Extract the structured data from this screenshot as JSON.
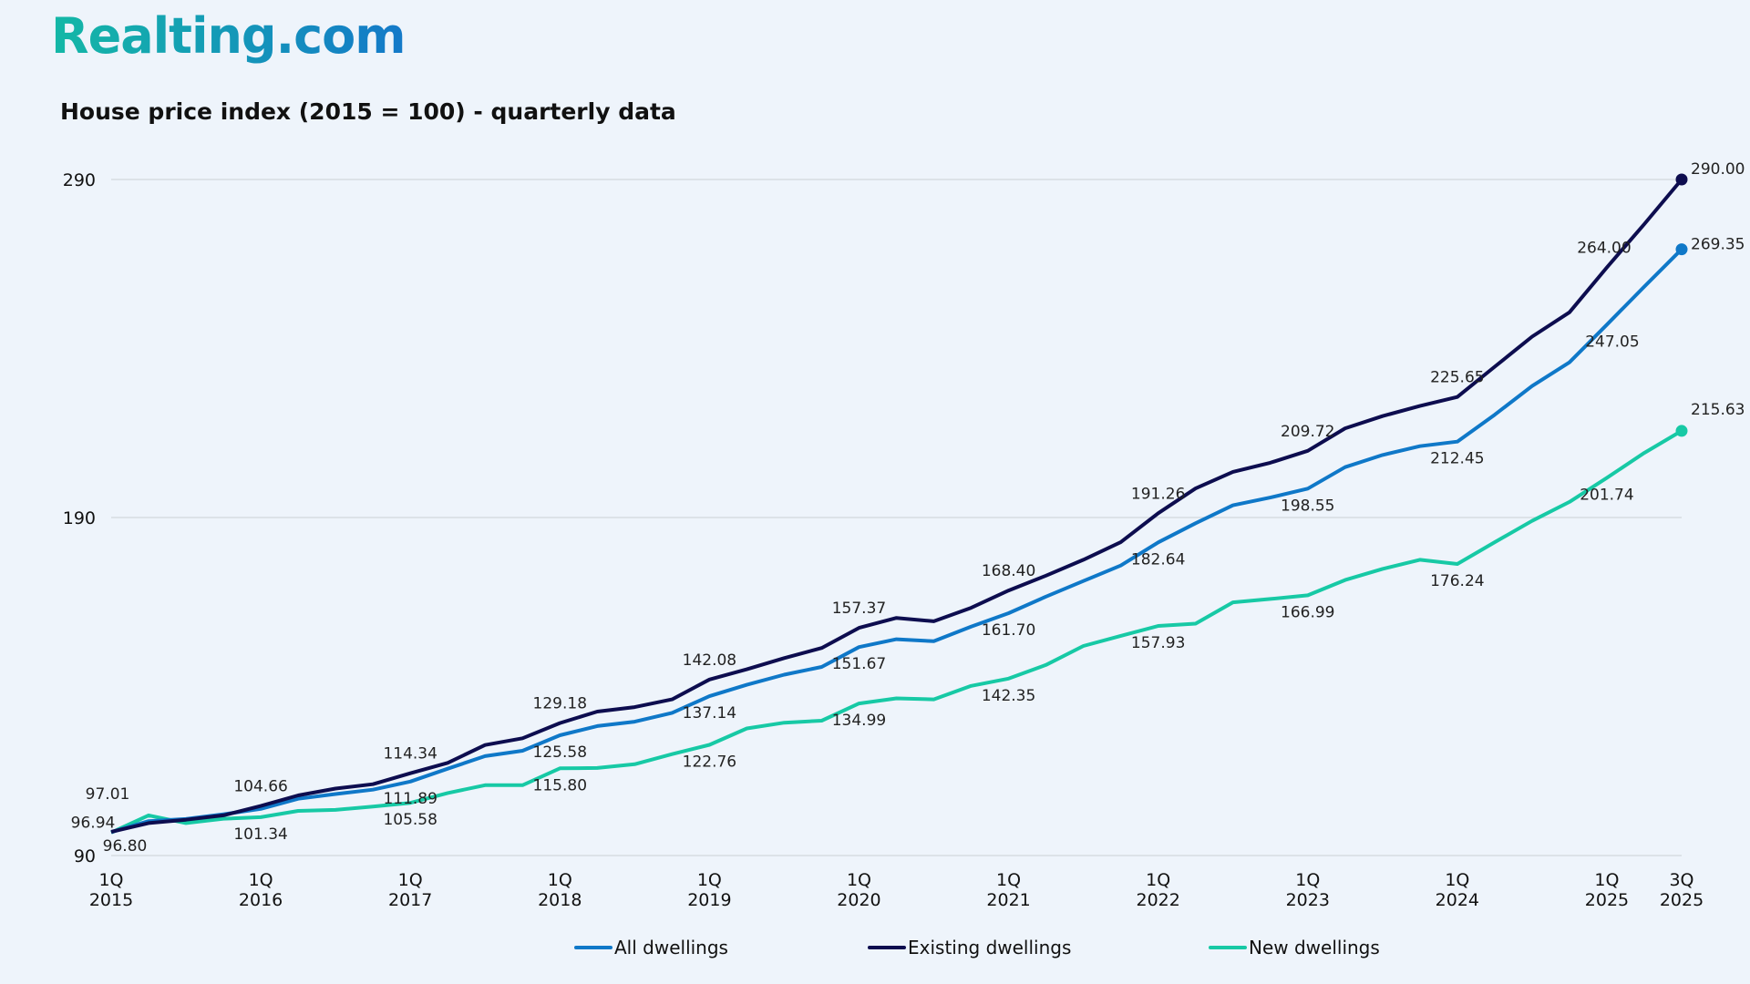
{
  "logo": "Realting.com",
  "chart_data": {
    "type": "line",
    "title": "House price index (2015 = 100) - quarterly data",
    "xlabel": "",
    "ylabel": "",
    "ylim": [
      90,
      290
    ],
    "y_ticks": [
      "90",
      "190",
      "290"
    ],
    "grid": "horizontal",
    "legend": "bottom",
    "x": [
      "1Q 2015",
      "2Q 2015",
      "3Q 2015",
      "4Q 2015",
      "1Q 2016",
      "2Q 2016",
      "3Q 2016",
      "4Q 2016",
      "1Q 2017",
      "2Q 2017",
      "3Q 2017",
      "4Q 2017",
      "1Q 2018",
      "2Q 2018",
      "3Q 2018",
      "4Q 2018",
      "1Q 2019",
      "2Q 2019",
      "3Q 2019",
      "4Q 2019",
      "1Q 2020",
      "2Q 2020",
      "3Q 2020",
      "4Q 2020",
      "1Q 2021",
      "2Q 2021",
      "3Q 2021",
      "4Q 2021",
      "1Q 2022",
      "2Q 2022",
      "3Q 2022",
      "4Q 2022",
      "1Q 2023",
      "2Q 2023",
      "3Q 2023",
      "4Q 2023",
      "1Q 2024",
      "2Q 2024",
      "3Q 2024",
      "4Q 2024",
      "1Q 2025",
      "2Q 2025",
      "3Q 2025"
    ],
    "x_tick_labels": [
      {
        "q": "1Q",
        "y": "2015",
        "index": 0
      },
      {
        "q": "1Q",
        "y": "2016",
        "index": 4
      },
      {
        "q": "1Q",
        "y": "2017",
        "index": 8
      },
      {
        "q": "1Q",
        "y": "2018",
        "index": 12
      },
      {
        "q": "1Q",
        "y": "2019",
        "index": 16
      },
      {
        "q": "1Q",
        "y": "2020",
        "index": 20
      },
      {
        "q": "1Q",
        "y": "2021",
        "index": 24
      },
      {
        "q": "1Q",
        "y": "2022",
        "index": 28
      },
      {
        "q": "1Q",
        "y": "2023",
        "index": 32
      },
      {
        "q": "1Q",
        "y": "2024",
        "index": 36
      },
      {
        "q": "1Q",
        "y": "2025",
        "index": 40
      },
      {
        "q": "3Q",
        "y": "2025",
        "index": 42
      }
    ],
    "series": [
      {
        "name": "All dwellings",
        "color": "#0f78c8",
        "labeled": [
          0,
          8,
          12,
          16,
          20,
          24,
          28,
          32,
          36,
          40,
          42
        ],
        "values": [
          96.94,
          100.2,
          100.8,
          102.2,
          103.8,
          106.8,
          108.2,
          109.5,
          111.89,
          115.7,
          119.4,
          121.0,
          125.58,
          128.3,
          129.6,
          132.2,
          137.14,
          140.5,
          143.5,
          145.8,
          151.67,
          154.0,
          153.4,
          157.7,
          161.7,
          166.6,
          171.2,
          175.8,
          182.64,
          188.3,
          193.6,
          195.9,
          198.55,
          204.9,
          208.5,
          211.1,
          212.45,
          220.4,
          228.9,
          235.9,
          247.05,
          258.3,
          269.35
        ]
      },
      {
        "name": "Existing dwellings",
        "color": "#0d0d4f",
        "labeled": [
          0,
          4,
          8,
          12,
          16,
          20,
          24,
          28,
          32,
          36,
          40,
          42
        ],
        "values": [
          97.01,
          99.6,
          100.6,
          101.9,
          104.66,
          107.8,
          109.8,
          111.1,
          114.34,
          117.4,
          122.7,
          124.7,
          129.18,
          132.6,
          133.9,
          136.2,
          142.08,
          145.1,
          148.4,
          151.4,
          157.37,
          160.3,
          159.3,
          163.3,
          168.4,
          172.8,
          177.5,
          182.7,
          191.26,
          198.6,
          203.5,
          206.2,
          209.72,
          216.4,
          220.0,
          223.0,
          225.65,
          234.6,
          243.5,
          250.7,
          264.0,
          276.8,
          290.0
        ]
      },
      {
        "name": "New dwellings",
        "color": "#17c9a5",
        "labeled": [
          0,
          4,
          8,
          12,
          16,
          20,
          24,
          28,
          32,
          36,
          40,
          42
        ],
        "values": [
          96.8,
          101.9,
          99.6,
          100.9,
          101.34,
          103.2,
          103.5,
          104.5,
          105.58,
          108.5,
          110.8,
          110.8,
          115.8,
          115.9,
          117.0,
          120.0,
          122.76,
          127.6,
          129.3,
          129.9,
          134.99,
          136.5,
          136.2,
          140.2,
          142.35,
          146.4,
          152.0,
          155.0,
          157.93,
          158.6,
          164.9,
          165.9,
          166.99,
          171.5,
          174.8,
          177.5,
          176.24,
          182.7,
          189.0,
          194.6,
          201.74,
          209.1,
          215.63
        ]
      }
    ]
  }
}
